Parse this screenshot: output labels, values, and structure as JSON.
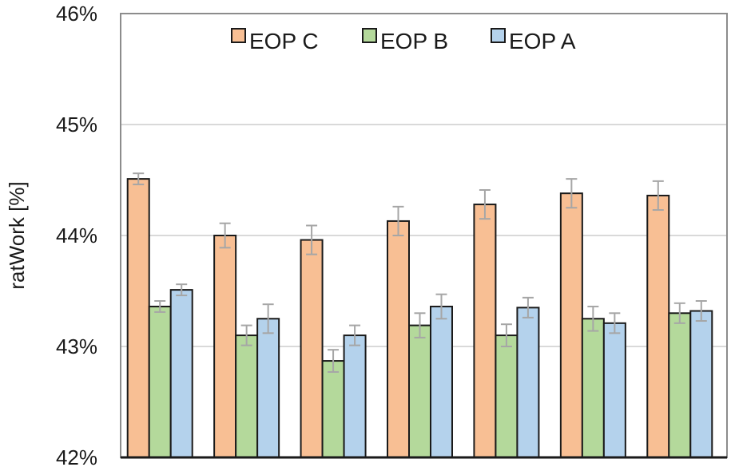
{
  "chart_data": {
    "type": "bar",
    "title": "",
    "xlabel": "",
    "ylabel": "ratWork [%]",
    "ylim": [
      0.42,
      0.46
    ],
    "yticks": [
      {
        "value": 0.42,
        "label": "42%"
      },
      {
        "value": 0.43,
        "label": "43%"
      },
      {
        "value": 0.44,
        "label": "44%"
      },
      {
        "value": 0.45,
        "label": "45%"
      },
      {
        "value": 0.46,
        "label": "46%"
      }
    ],
    "grid": true,
    "legend_position": "top-center",
    "num_groups": 7,
    "series": [
      {
        "name": "EOP C",
        "color": "#f8bf94",
        "values": [
          0.4451,
          0.44,
          0.4396,
          0.4413,
          0.4428,
          0.4438,
          0.4436
        ],
        "errors": [
          0.0005,
          0.0011,
          0.0013,
          0.0013,
          0.0013,
          0.0013,
          0.0013
        ]
      },
      {
        "name": "EOP B",
        "color": "#b4d99b",
        "values": [
          0.4336,
          0.431,
          0.4287,
          0.4319,
          0.431,
          0.4325,
          0.433
        ],
        "errors": [
          0.0005,
          0.0009,
          0.001,
          0.0011,
          0.001,
          0.0011,
          0.0009
        ]
      },
      {
        "name": "EOP A",
        "color": "#b4d2ec",
        "values": [
          0.4351,
          0.4325,
          0.431,
          0.4336,
          0.4335,
          0.4321,
          0.4332
        ],
        "errors": [
          0.0005,
          0.0013,
          0.0009,
          0.0011,
          0.0009,
          0.0009,
          0.0009
        ]
      }
    ]
  }
}
